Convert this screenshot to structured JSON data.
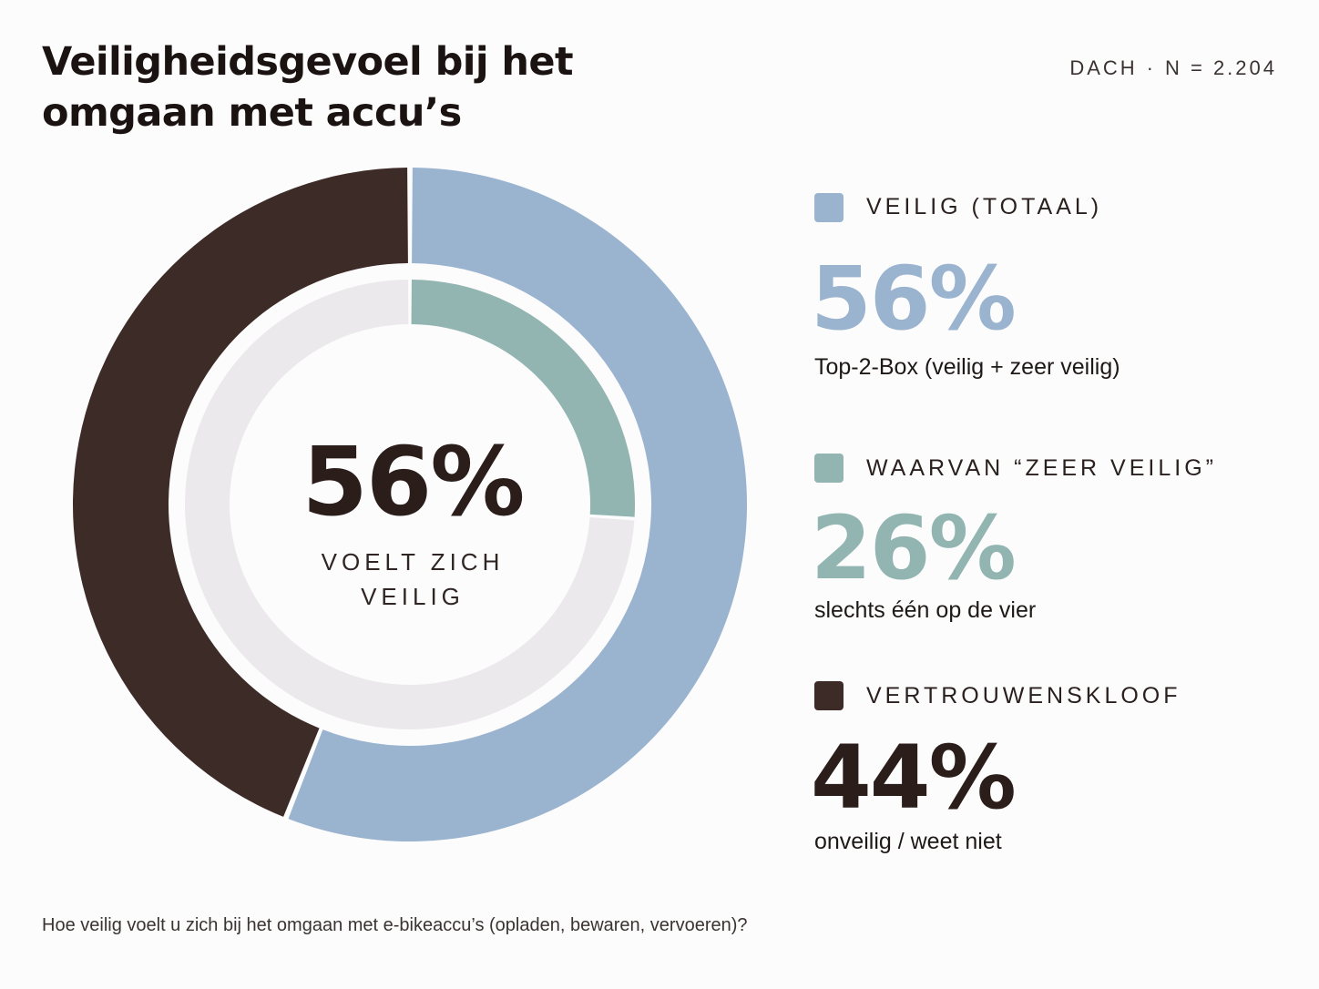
{
  "header": {
    "title": "Veiligheidsgevoel bij het omgaan met accu’s",
    "meta_region": "DACH",
    "meta_separator": "·",
    "meta_sample": "N = 2.204"
  },
  "center": {
    "value": "56%",
    "label": "VOELT ZICH VEILIG"
  },
  "legend": [
    {
      "label": "VEILIG (TOTAAL)",
      "value": "56%",
      "sub": "Top-2-Box (veilig + zeer veilig)",
      "color": "#9ab3cf"
    },
    {
      "label": "WAARVAN “ZEER VEILIG”",
      "value": "26%",
      "sub": "slechts één op de vier",
      "color": "#92b5b1"
    },
    {
      "label": "VERTROUWENSKLOOF",
      "value": "44%",
      "sub": "onveilig / weet niet",
      "color": "#3d2b27"
    }
  ],
  "footnote": "Hoe veilig voelt u zich bij het omgaan met e-bikeaccu’s (opladen, bewaren, vervoeren)?",
  "chart_data": {
    "type": "pie",
    "variant": "nested-donut",
    "outer_ring": {
      "categories": [
        "Veilig (totaal)",
        "Vertrouwenskloof"
      ],
      "values": [
        56,
        44
      ],
      "colors": [
        "#9ab3cf",
        "#3d2b27"
      ]
    },
    "inner_ring": {
      "categories": [
        "Waarvan “zeer veilig”",
        ""
      ],
      "values": [
        26,
        74
      ],
      "colors": [
        "#92b5b1",
        "#ebe9eb"
      ]
    },
    "unit": "%"
  }
}
